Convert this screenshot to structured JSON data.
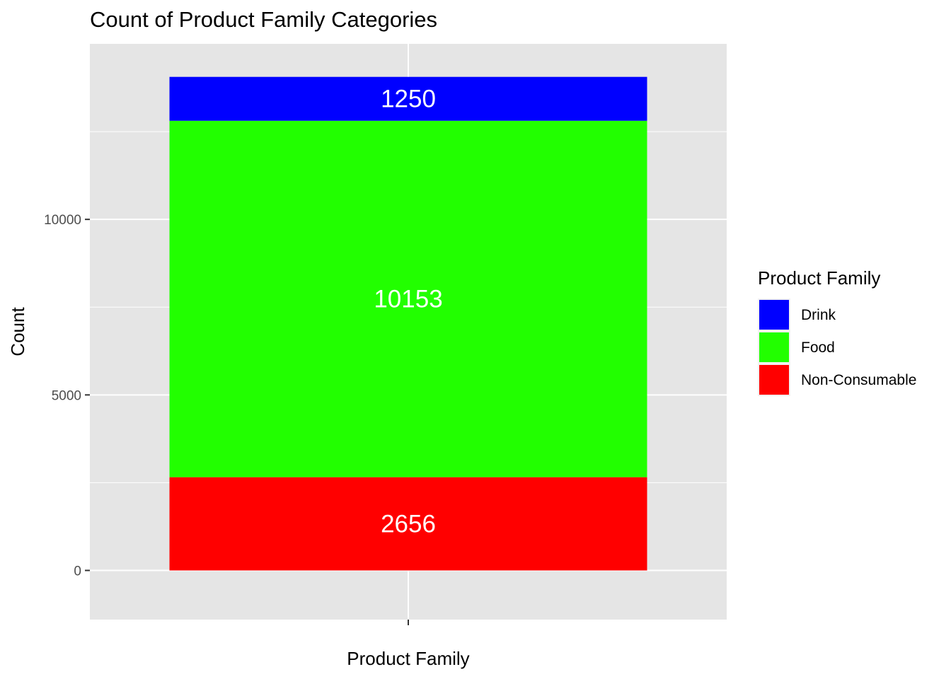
{
  "chart_data": {
    "type": "bar",
    "stacked": true,
    "title": "Count of Product Family Categories",
    "xlabel": "Product Family",
    "ylabel": "Count",
    "ylim": [
      -1400,
      15000
    ],
    "yticks": [
      0,
      5000,
      10000
    ],
    "ytick_labels": [
      "0",
      "5000",
      "10000"
    ],
    "grid": true,
    "legend": {
      "title": "Product Family",
      "position": "right"
    },
    "series": [
      {
        "name": "Non-Consumable",
        "value": 2656,
        "label": "2656",
        "color": "#ff0000"
      },
      {
        "name": "Food",
        "value": 10153,
        "label": "10153",
        "color": "#22ff00"
      },
      {
        "name": "Drink",
        "value": 1250,
        "label": "1250",
        "color": "#0000ff"
      }
    ],
    "legend_order": [
      "Drink",
      "Food",
      "Non-Consumable"
    ]
  },
  "colors": {
    "panel_bg": "#e5e5e5",
    "grid": "#ffffff",
    "tick_text": "#4d4d4d"
  }
}
